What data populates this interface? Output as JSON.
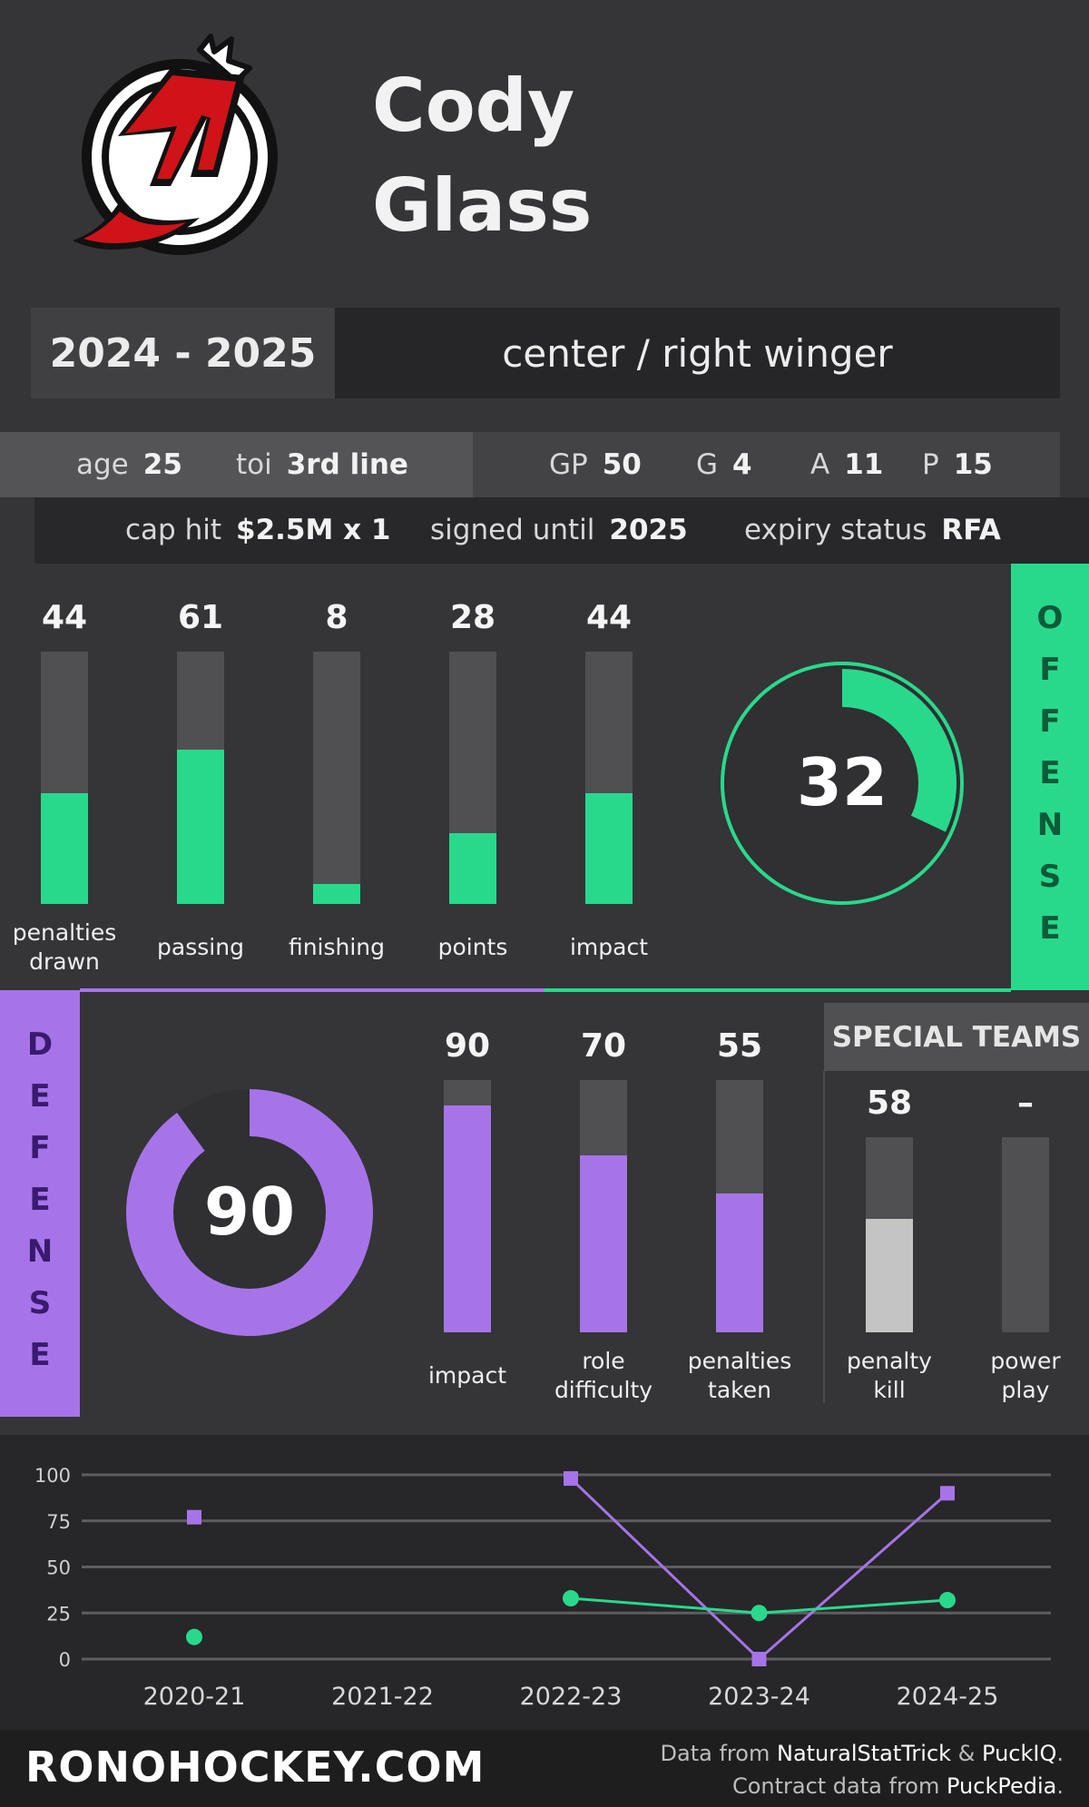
{
  "player": {
    "first_name": "Cody",
    "last_name": "Glass",
    "team_logo": "new-jersey-devils-logo"
  },
  "season": "2024 - 2025",
  "position": "center / right winger",
  "stats": {
    "age_label": "age",
    "age": "25",
    "toi_label": "toi",
    "toi": "3rd line",
    "gp_label": "GP",
    "gp": "50",
    "g_label": "G",
    "g": "4",
    "a_label": "A",
    "a": "11",
    "p_label": "P",
    "p": "15"
  },
  "contract": {
    "cap_hit_label": "cap hit",
    "cap_hit": "$2.5M x 1",
    "signed_label": "signed until",
    "signed_until": "2025",
    "expiry_label": "expiry status",
    "expiry": "RFA"
  },
  "offense": {
    "side_label": [
      "O",
      "F",
      "F",
      "E",
      "N",
      "S",
      "E"
    ],
    "bars": [
      {
        "value": 44,
        "label": [
          "penalties",
          "drawn"
        ]
      },
      {
        "value": 61,
        "label": [
          "passing"
        ]
      },
      {
        "value": 8,
        "label": [
          "finishing"
        ]
      },
      {
        "value": 28,
        "label": [
          "points"
        ]
      },
      {
        "value": 44,
        "label": [
          "impact"
        ]
      }
    ],
    "ring_value": "32",
    "ring_fraction": 0.32
  },
  "defense": {
    "side_label": [
      "D",
      "E",
      "F",
      "E",
      "N",
      "S",
      "E"
    ],
    "ring_value": "90",
    "ring_fraction": 0.9,
    "bars": [
      {
        "value": 90,
        "label": [
          "impact"
        ]
      },
      {
        "value": 70,
        "label": [
          "role",
          "difficulty"
        ]
      },
      {
        "value": 55,
        "label": [
          "penalties",
          "taken"
        ]
      }
    ]
  },
  "special_teams": {
    "title": "SPECIAL TEAMS",
    "bars": [
      {
        "value": 58,
        "display": "58",
        "label": [
          "penalty",
          "kill"
        ]
      },
      {
        "value": null,
        "display": "–",
        "label": [
          "power",
          "play"
        ]
      }
    ]
  },
  "colors": {
    "offense": "#28d98c",
    "defense": "#a674e8",
    "special": "#c4c4c4",
    "track": "#504f52",
    "defense_text": "#3a1a6e",
    "offense_text": "#0d5a38"
  },
  "chart_data": {
    "type": "line",
    "categories": [
      "2020-21",
      "2021-22",
      "2022-23",
      "2023-24",
      "2024-25"
    ],
    "ylim": [
      0,
      100
    ],
    "yticks": [
      0,
      25,
      50,
      75,
      100
    ],
    "grid": true,
    "series": [
      {
        "color": "#a674e8",
        "marker": "square",
        "values": [
          77,
          null,
          98,
          0,
          90
        ]
      },
      {
        "color": "#28d98c",
        "marker": "circle",
        "values": [
          12,
          null,
          33,
          25,
          32
        ]
      }
    ]
  },
  "footer": {
    "brand": "RONOHOCKEY.COM",
    "line1_prefix": "Data from",
    "line1_source1": "NaturalStatTrick",
    "line1_amp": "&",
    "line1_source2": "PuckIQ",
    "line1_end": ".",
    "line2_prefix": "Contract data from",
    "line2_source": "PuckPedia",
    "line2_end": "."
  }
}
